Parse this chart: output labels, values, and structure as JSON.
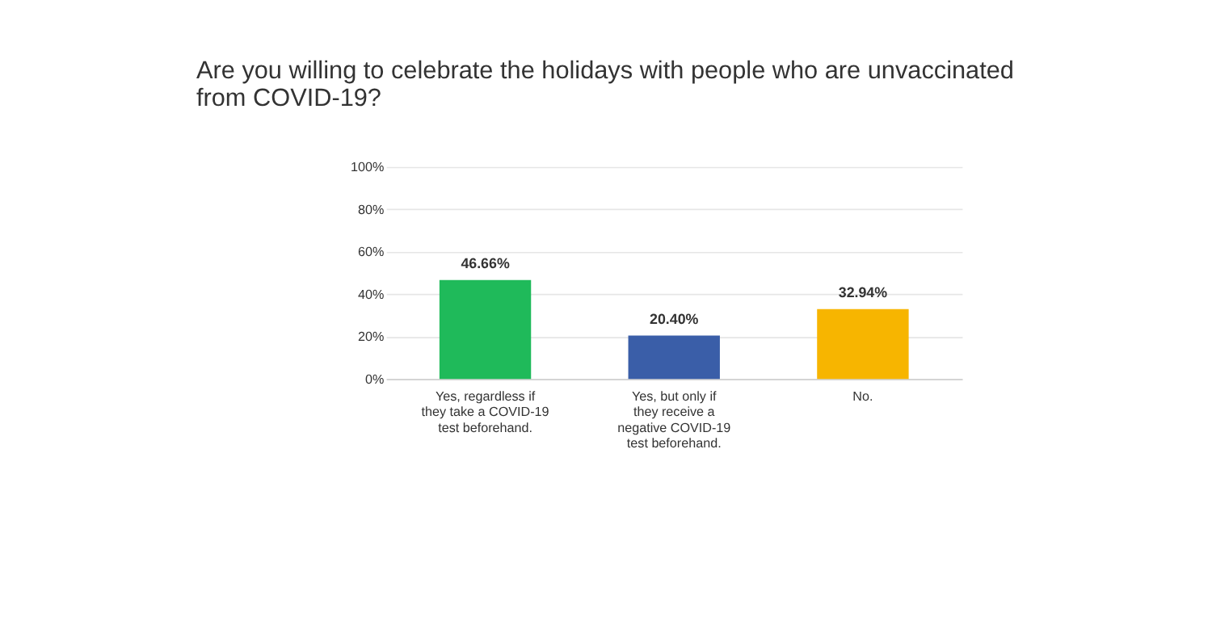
{
  "chart_data": {
    "type": "bar",
    "title": "Are you willing to celebrate the holidays with people who are unvaccinated from COVID-19?",
    "categories": [
      "Yes, regardless if they take a COVID-19 test beforehand.",
      "Yes, but only if they receive a negative COVID-19 test beforehand.",
      "No."
    ],
    "values": [
      46.66,
      20.4,
      32.94
    ],
    "colors": [
      "#1fba5a",
      "#3a5ea8",
      "#f7b500"
    ],
    "value_labels": [
      "46.66%",
      "20.40%",
      "32.94%"
    ],
    "ylim": [
      0,
      100
    ],
    "yticks": [
      {
        "value": 0,
        "label": "0%"
      },
      {
        "value": 20,
        "label": "20%"
      },
      {
        "value": 40,
        "label": "40%"
      },
      {
        "value": 60,
        "label": "60%"
      },
      {
        "value": 80,
        "label": "80%"
      },
      {
        "value": 100,
        "label": "100%"
      }
    ],
    "grid": "y"
  }
}
